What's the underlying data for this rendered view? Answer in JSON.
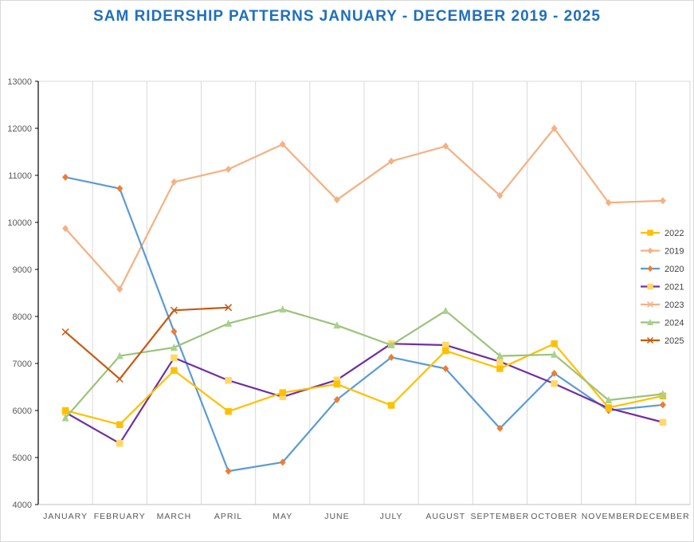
{
  "chart_data": {
    "type": "line",
    "title": "SAM RIDERSHIP PATTERNS JANUARY - DECEMBER 2019 - 2025",
    "xlabel": "",
    "ylabel": "",
    "ylim": [
      4000,
      13000
    ],
    "yticks": [
      "4000",
      "5000",
      "6000",
      "7000",
      "8000",
      "9000",
      "10000",
      "11000",
      "12000",
      "13000"
    ],
    "grid": "vertical",
    "legend_position": "right",
    "categories": [
      "JANUARY",
      "FEBRUARY",
      "MARCH",
      "APRIL",
      "MAY",
      "JUNE",
      "JULY",
      "AUGUST",
      "SEPTEMBER",
      "OCTOBER",
      "NOVEMBER",
      "DECEMBER"
    ],
    "series": [
      {
        "name": "2022",
        "color": "#ffc000",
        "marker": "square",
        "values": [
          6000,
          5700,
          6850,
          5980,
          6380,
          6560,
          6110,
          7270,
          6890,
          7420,
          6060,
          6310
        ]
      },
      {
        "name": "2019",
        "color": "#f4b183",
        "marker": "diamond",
        "values": [
          9870,
          8580,
          10860,
          11130,
          11660,
          10480,
          11300,
          11620,
          10570,
          12000,
          10420,
          10460
        ]
      },
      {
        "name": "2020",
        "color": "#5b9bd5",
        "marker": "diamond",
        "values": [
          10960,
          10720,
          7680,
          4710,
          4900,
          6230,
          7130,
          6890,
          5620,
          6790,
          6000,
          6120
        ]
      },
      {
        "name": "2021",
        "color": "#7030a0",
        "marker": "square",
        "values": [
          5960,
          5300,
          7120,
          6640,
          6290,
          6650,
          7420,
          7390,
          7040,
          6570,
          6050,
          5750
        ]
      },
      {
        "name": "2023",
        "color": "#f4b183",
        "marker": "cross",
        "values": [
          null,
          null,
          null,
          null,
          null,
          null,
          null,
          null,
          null,
          null,
          null,
          null
        ]
      },
      {
        "name": "2024",
        "color": "#9bc37a",
        "marker": "triangle",
        "values": [
          5840,
          7160,
          7340,
          7850,
          8150,
          7810,
          7390,
          8120,
          7160,
          7190,
          6220,
          6350
        ]
      },
      {
        "name": "2025",
        "color": "#c55a11",
        "marker": "cross",
        "values": [
          7670,
          6670,
          8130,
          8190,
          null,
          null,
          null,
          null,
          null,
          null,
          null,
          null
        ]
      }
    ]
  }
}
